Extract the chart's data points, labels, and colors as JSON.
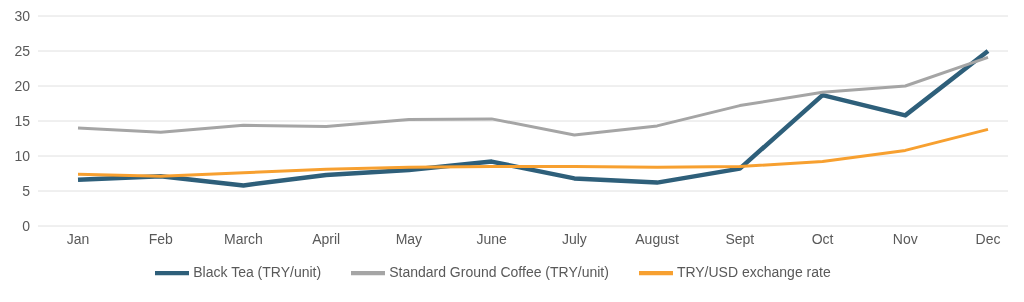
{
  "chart_data": {
    "type": "line",
    "categories": [
      "Jan",
      "Feb",
      "March",
      "April",
      "May",
      "June",
      "July",
      "August",
      "Sept",
      "Oct",
      "Nov",
      "Dec"
    ],
    "series": [
      {
        "name": "Black Tea (TRY/unit)",
        "color": "#2e5f7a",
        "values": [
          6.6,
          7.1,
          5.8,
          7.3,
          8.0,
          9.2,
          6.8,
          6.2,
          8.2,
          18.7,
          15.8,
          25.0
        ]
      },
      {
        "name": "Standard Ground Coffee (TRY/unit)",
        "color": "#a5a5a5",
        "values": [
          14.0,
          13.4,
          14.4,
          14.2,
          15.2,
          15.3,
          13.0,
          14.3,
          17.2,
          19.1,
          20.0,
          24.1
        ]
      },
      {
        "name": "TRY/USD exchange rate",
        "color": "#f7a030",
        "values": [
          7.4,
          7.1,
          7.6,
          8.1,
          8.4,
          8.5,
          8.5,
          8.4,
          8.5,
          9.2,
          10.8,
          13.8
        ]
      }
    ],
    "ylim": [
      0,
      30
    ],
    "yticks": [
      0,
      5,
      10,
      15,
      20,
      25,
      30
    ],
    "grid": "y",
    "legend": "bottom",
    "marker": "none",
    "line_style": "solid"
  }
}
